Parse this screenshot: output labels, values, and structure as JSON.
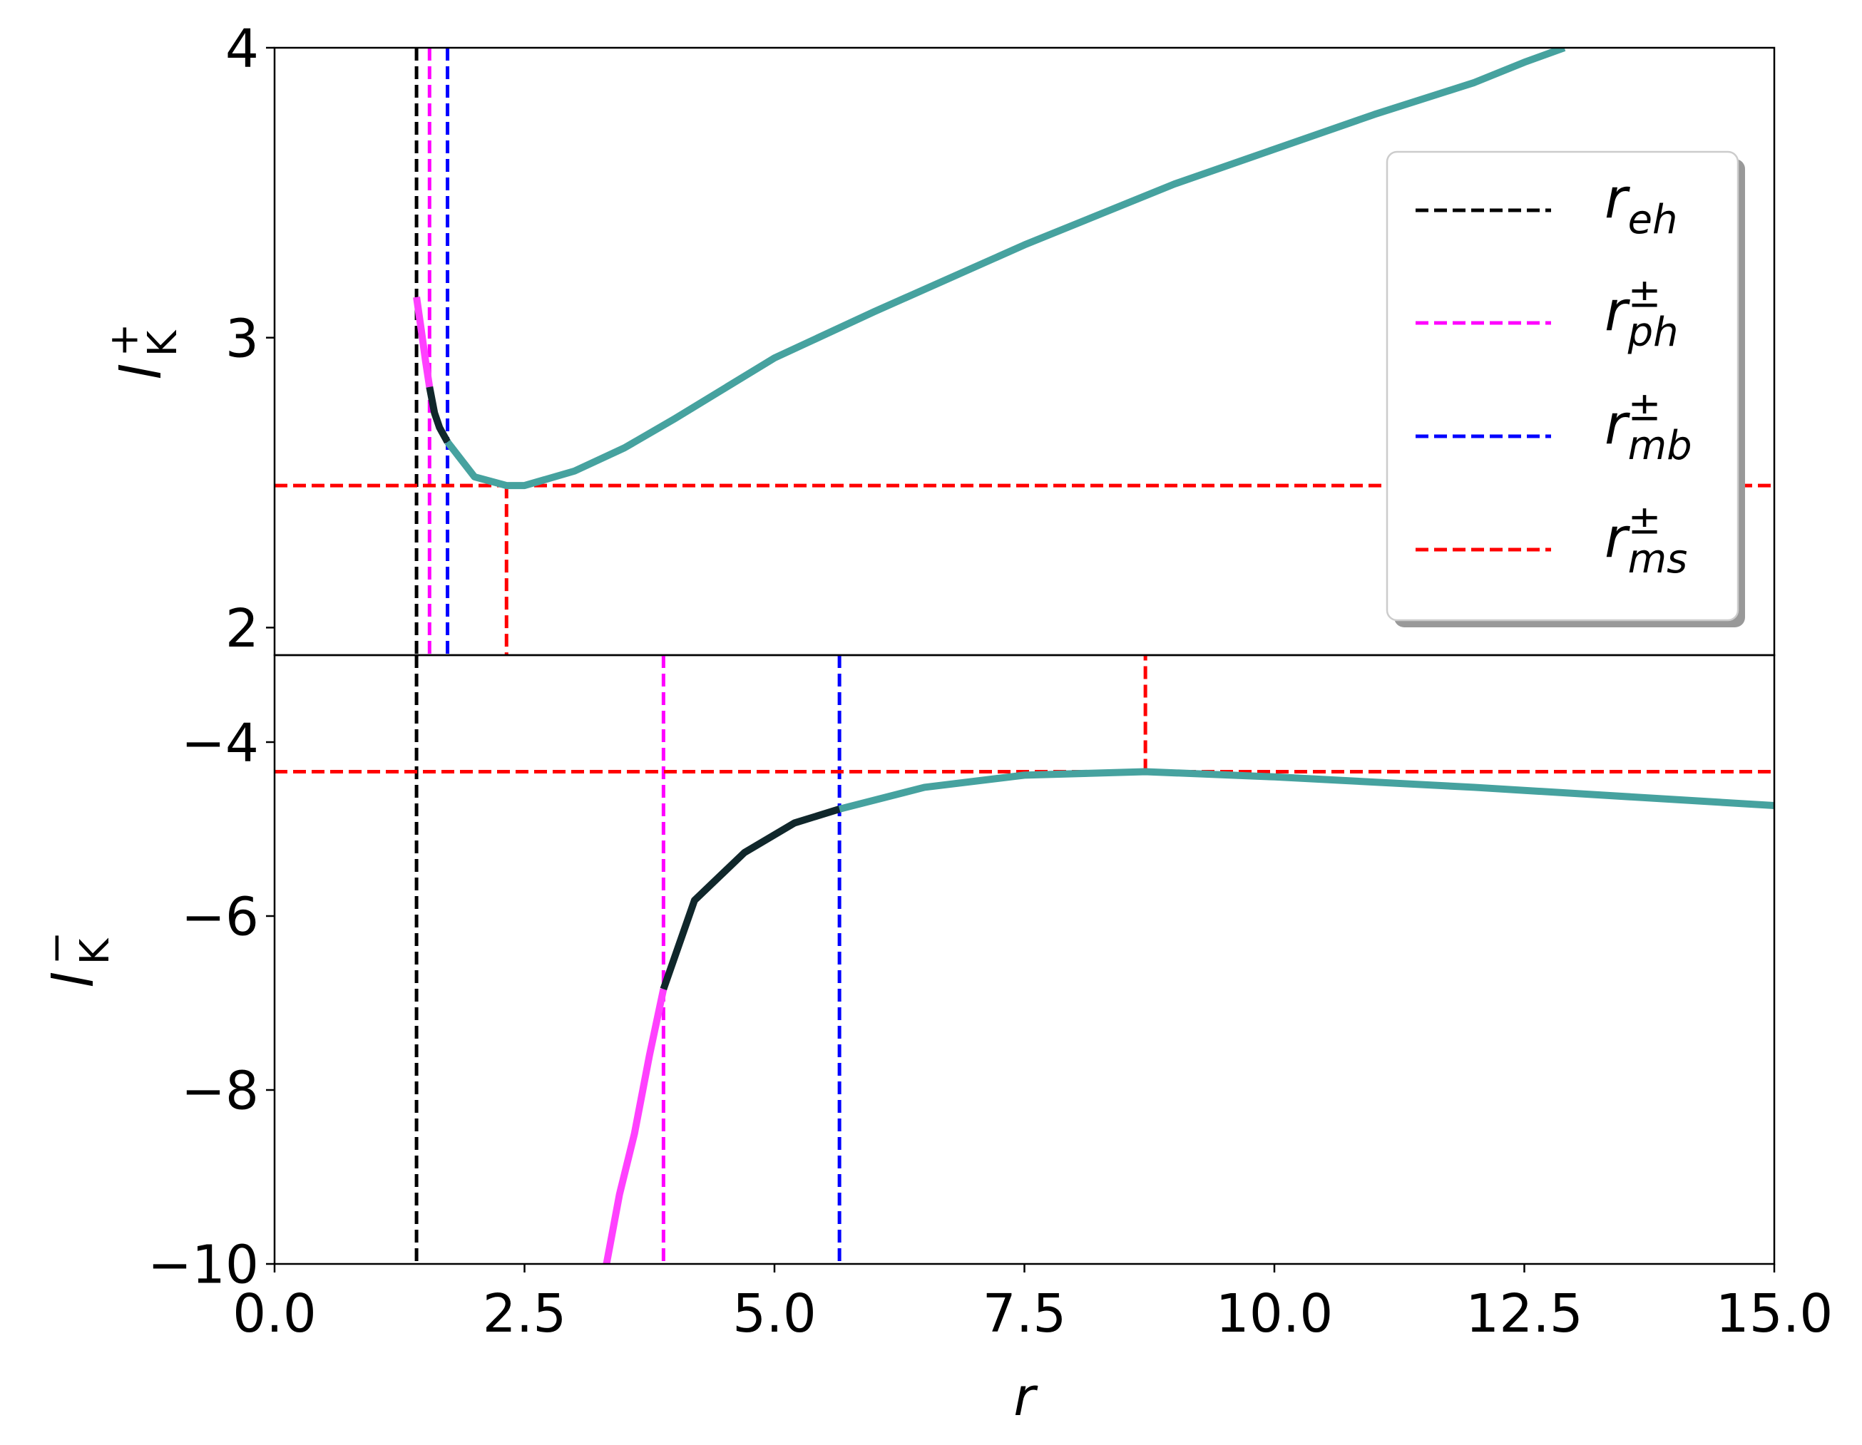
{
  "chart_data": [
    {
      "type": "line",
      "ylabel": {
        "base": "l",
        "sub": "K",
        "sup": "+"
      },
      "xlim": [
        0,
        15
      ],
      "ylim": [
        1.905,
        4
      ],
      "yticks": [
        2,
        3,
        4
      ],
      "series": [
        {
          "color": "#ff40ff",
          "x": [
            1.42,
            1.47,
            1.51,
            1.55
          ],
          "values": [
            3.14,
            3.02,
            2.92,
            2.83
          ]
        },
        {
          "color": "#10272b",
          "x": [
            1.55,
            1.6,
            1.65,
            1.73
          ],
          "values": [
            2.83,
            2.74,
            2.69,
            2.64
          ]
        },
        {
          "color": "#46a29f",
          "x": [
            1.73,
            2.0,
            2.32,
            2.5,
            3.0,
            3.5,
            4.0,
            5.0,
            6.0,
            7.5,
            9.0,
            10.0,
            11.0,
            12.0,
            12.5,
            12.9
          ],
          "values": [
            2.64,
            2.52,
            2.49,
            2.49,
            2.54,
            2.62,
            2.72,
            2.93,
            3.09,
            3.32,
            3.53,
            3.65,
            3.77,
            3.88,
            3.95,
            4.0
          ]
        }
      ],
      "reference_lines": [
        {
          "name": {
            "base": "r",
            "sub": "eh"
          },
          "color": "#000000",
          "x": 1.42
        },
        {
          "name": {
            "base": "r",
            "sub": "ph",
            "sup": "±"
          },
          "color": "#ff00ff",
          "x": 1.55
        },
        {
          "name": {
            "base": "r",
            "sub": "mb",
            "sup": "±"
          },
          "color": "#0000ff",
          "x": 1.73
        },
        {
          "name": {
            "base": "r",
            "sub": "ms",
            "sup": "±"
          },
          "color": "#ff0000",
          "x": 2.32,
          "y": 2.49
        }
      ],
      "legend": "upper right"
    },
    {
      "type": "line",
      "xlabel": "r",
      "ylabel": {
        "base": "l",
        "sub": "K",
        "sup": "−"
      },
      "xlim": [
        0,
        15
      ],
      "ylim": [
        -10,
        -3
      ],
      "xticks": [
        {
          "value": 0,
          "label": "0.0"
        },
        {
          "value": 2.5,
          "label": "2.5"
        },
        {
          "value": 5,
          "label": "5.0"
        },
        {
          "value": 7.5,
          "label": "7.5"
        },
        {
          "value": 10,
          "label": "10.0"
        },
        {
          "value": 12.5,
          "label": "12.5"
        },
        {
          "value": 15,
          "label": "15.0"
        }
      ],
      "yticks": [
        {
          "value": -10,
          "label": "−10"
        },
        {
          "value": -8,
          "label": "−8"
        },
        {
          "value": -6,
          "label": "−6"
        },
        {
          "value": -4,
          "label": "−4"
        }
      ],
      "series": [
        {
          "color": "#ff40ff",
          "x": [
            3.32,
            3.45,
            3.6,
            3.75,
            3.89
          ],
          "values": [
            -10,
            -9.2,
            -8.5,
            -7.6,
            -6.84
          ]
        },
        {
          "color": "#10272b",
          "x": [
            3.89,
            4.2,
            4.7,
            5.2,
            5.65
          ],
          "values": [
            -6.84,
            -5.82,
            -5.27,
            -4.93,
            -4.77
          ]
        },
        {
          "color": "#46a29f",
          "x": [
            5.65,
            6.5,
            7.5,
            8.71,
            10,
            12,
            15
          ],
          "values": [
            -4.77,
            -4.52,
            -4.38,
            -4.34,
            -4.4,
            -4.52,
            -4.73
          ]
        }
      ],
      "reference_lines": [
        {
          "color": "#000000",
          "x": 1.42
        },
        {
          "color": "#ff00ff",
          "x": 3.89
        },
        {
          "color": "#0000ff",
          "x": 5.65
        },
        {
          "color": "#ff0000",
          "x": 8.71,
          "y": -4.34
        }
      ]
    }
  ]
}
